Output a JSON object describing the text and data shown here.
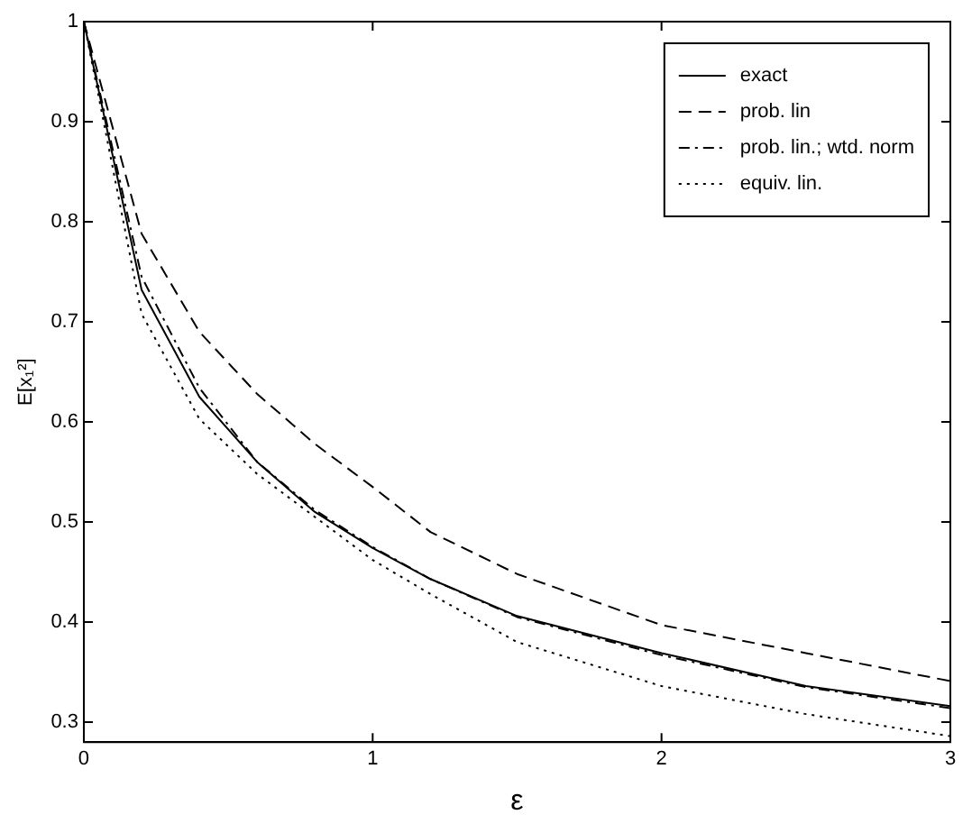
{
  "chart_data": {
    "type": "line",
    "xlabel": "ε",
    "ylabel": "E[x₁²]",
    "x": [
      0,
      0.2,
      0.4,
      0.6,
      0.8,
      1,
      1.2,
      1.5,
      2,
      2.5,
      3
    ],
    "xlim": [
      0,
      3
    ],
    "xticks": [
      0,
      1,
      2,
      3
    ],
    "ylim": [
      0.28,
      1
    ],
    "yticks": [
      0.3,
      0.4,
      0.5,
      0.6,
      0.7,
      0.8,
      0.9,
      1
    ],
    "legend": "top right",
    "marker": "none",
    "series": [
      {
        "name": "exact",
        "color": "#000000",
        "line_style": "solid",
        "values": [
          1,
          0.732,
          0.625,
          0.56,
          0.51,
          0.474,
          0.443,
          0.406,
          0.369,
          0.336,
          0.316
        ]
      },
      {
        "name": "prob. lin",
        "color": "#000000",
        "line_style": "dashed",
        "values": [
          1,
          0.788,
          0.69,
          0.628,
          0.578,
          0.535,
          0.49,
          0.448,
          0.397,
          0.369,
          0.341
        ]
      },
      {
        "name": "prob. lin.; wtd. norm",
        "color": "#000000",
        "line_style": "dashdot",
        "values": [
          1,
          0.745,
          0.634,
          0.56,
          0.512,
          0.475,
          0.443,
          0.405,
          0.367,
          0.335,
          0.314
        ]
      },
      {
        "name": "equiv. lin.",
        "color": "#000000",
        "line_style": "dotted",
        "values": [
          1,
          0.708,
          0.603,
          0.548,
          0.505,
          0.462,
          0.428,
          0.38,
          0.336,
          0.308,
          0.286
        ]
      }
    ]
  }
}
